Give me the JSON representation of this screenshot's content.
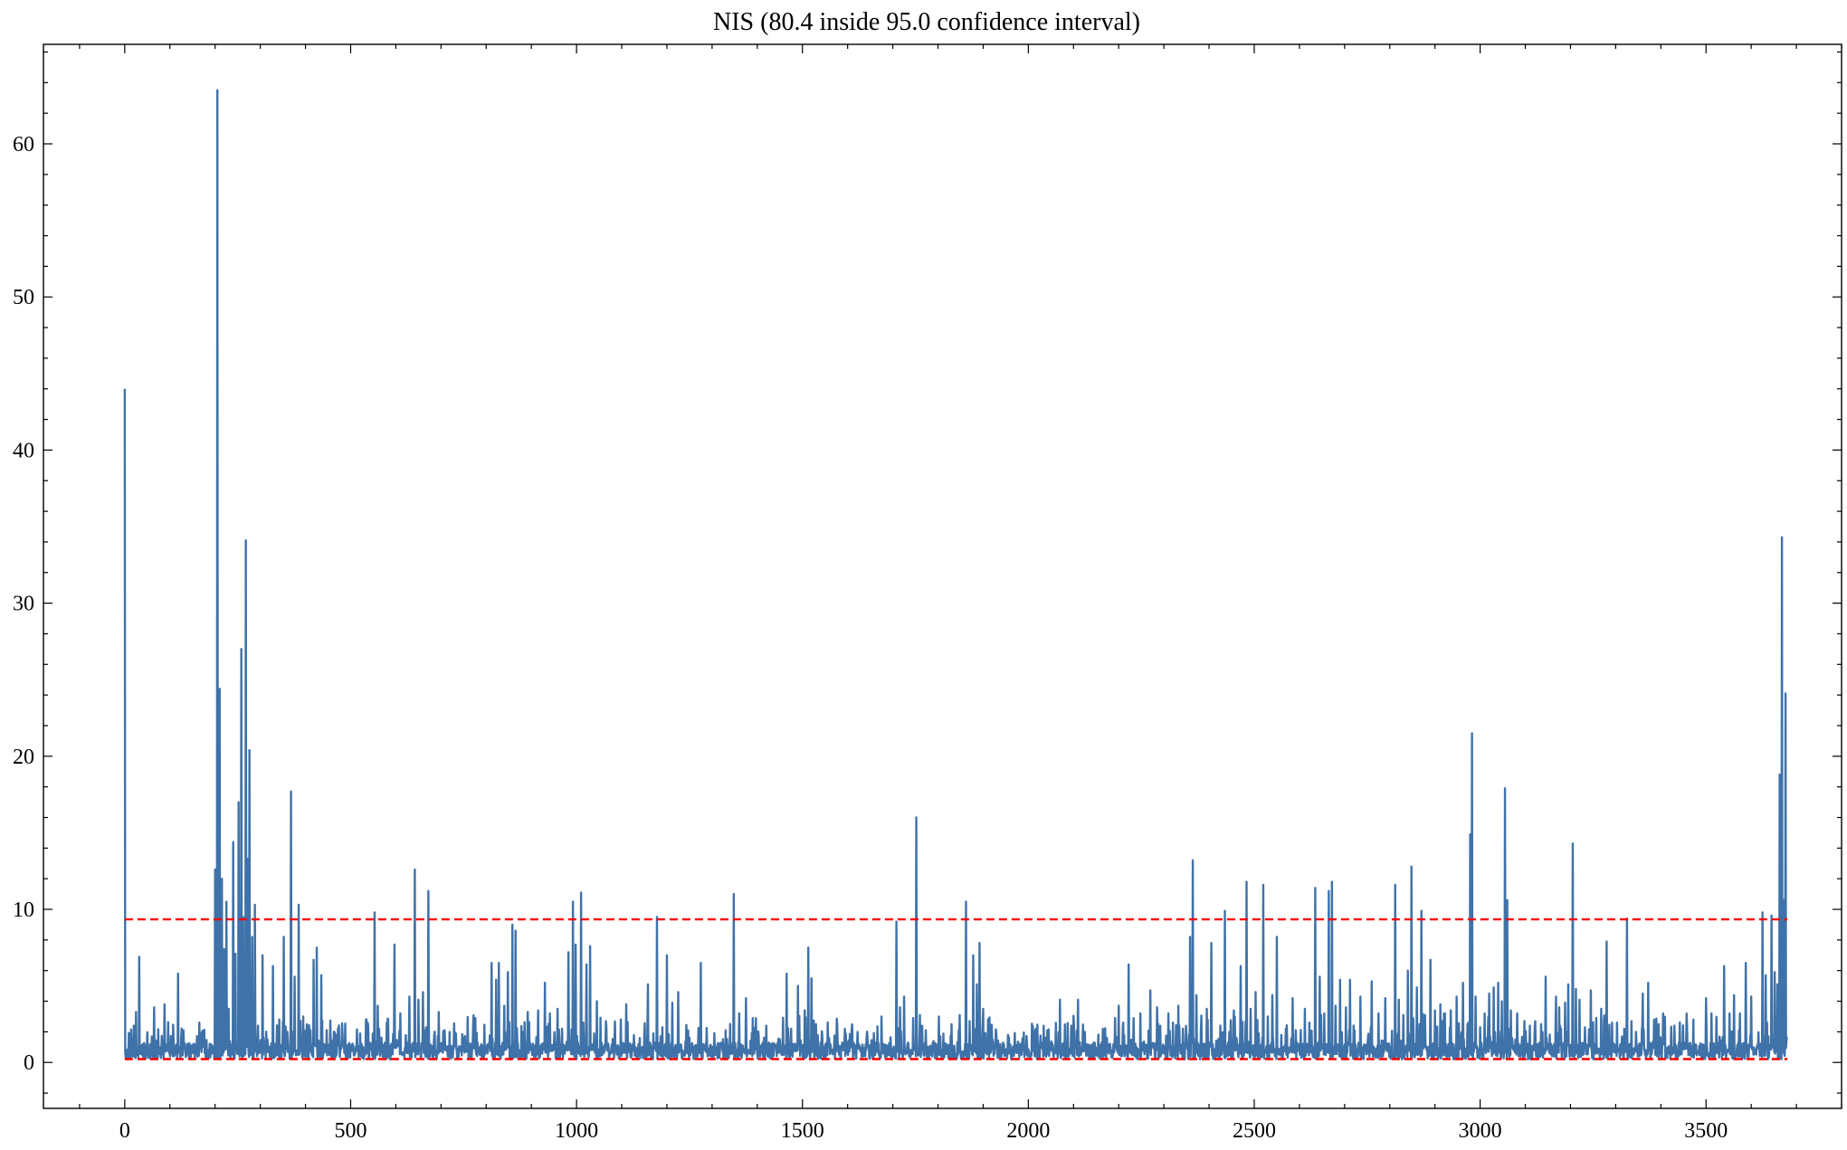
{
  "chart_data": {
    "type": "line",
    "title": "NIS (80.4 inside 95.0 confidence interval)",
    "xlabel": "",
    "ylabel": "",
    "xlim": [
      -180,
      3800
    ],
    "ylim": [
      -3,
      66.5
    ],
    "grid": false,
    "x_ticks": [
      0,
      500,
      1000,
      1500,
      2000,
      2500,
      3000,
      3500
    ],
    "x_tick_labels": [
      "0",
      "500",
      "1000",
      "1500",
      "2000",
      "2500",
      "3000",
      "3500"
    ],
    "x_minor_step": 100,
    "y_ticks": [
      0,
      10,
      20,
      30,
      40,
      50,
      60
    ],
    "y_tick_labels": [
      "0",
      "10",
      "20",
      "30",
      "40",
      "50",
      "60"
    ],
    "y_minor_step": 2,
    "series": [
      {
        "color": "#3f72a8",
        "style": "solid",
        "x_range": [
          0,
          3680
        ],
        "peaks": [
          [
            0,
            44
          ],
          [
            3,
            0.5
          ],
          [
            8,
            0.3
          ],
          [
            20,
            2.4
          ],
          [
            25,
            3.3
          ],
          [
            32,
            6.9
          ],
          [
            40,
            1.2
          ],
          [
            60,
            1.7
          ],
          [
            65,
            3.6
          ],
          [
            75,
            0.9
          ],
          [
            88,
            3.8
          ],
          [
            100,
            0.4
          ],
          [
            118,
            5.8
          ],
          [
            130,
            2.1
          ],
          [
            150,
            0.6
          ],
          [
            165,
            2.6
          ],
          [
            180,
            0.4
          ],
          [
            200,
            12.6
          ],
          [
            205,
            63.5
          ],
          [
            210,
            24.4
          ],
          [
            215,
            12.0
          ],
          [
            220,
            7.4
          ],
          [
            225,
            10.5
          ],
          [
            230,
            3.5
          ],
          [
            240,
            14.4
          ],
          [
            245,
            7.1
          ],
          [
            252,
            17.0
          ],
          [
            258,
            27.0
          ],
          [
            262,
            9.5
          ],
          [
            268,
            34.1
          ],
          [
            272,
            13.3
          ],
          [
            276,
            20.4
          ],
          [
            282,
            8.2
          ],
          [
            288,
            10.3
          ],
          [
            295,
            2.4
          ],
          [
            305,
            7.0
          ],
          [
            315,
            1.5
          ],
          [
            328,
            6.3
          ],
          [
            342,
            2.8
          ],
          [
            352,
            8.2
          ],
          [
            360,
            2.0
          ],
          [
            368,
            17.7
          ],
          [
            376,
            5.6
          ],
          [
            385,
            10.3
          ],
          [
            395,
            3.0
          ],
          [
            405,
            1.5
          ],
          [
            418,
            6.7
          ],
          [
            425,
            7.5
          ],
          [
            435,
            5.7
          ],
          [
            445,
            1.0
          ],
          [
            470,
            1.3
          ],
          [
            500,
            1.1
          ],
          [
            520,
            0.5
          ],
          [
            535,
            2.8
          ],
          [
            553,
            9.8
          ],
          [
            560,
            3.7
          ],
          [
            580,
            2.6
          ],
          [
            597,
            7.7
          ],
          [
            610,
            3.2
          ],
          [
            630,
            4.3
          ],
          [
            642,
            12.6
          ],
          [
            650,
            4.1
          ],
          [
            660,
            4.6
          ],
          [
            672,
            11.2
          ],
          [
            685,
            1.8
          ],
          [
            695,
            3.3
          ],
          [
            720,
            0.6
          ],
          [
            745,
            1.0
          ],
          [
            775,
            1.5
          ],
          [
            790,
            0.4
          ],
          [
            812,
            6.5
          ],
          [
            822,
            5.4
          ],
          [
            828,
            6.5
          ],
          [
            840,
            3.7
          ],
          [
            848,
            5.9
          ],
          [
            858,
            9.0
          ],
          [
            865,
            8.6
          ],
          [
            880,
            2.0
          ],
          [
            892,
            3.3
          ],
          [
            905,
            1.0
          ],
          [
            915,
            3.4
          ],
          [
            930,
            5.2
          ],
          [
            940,
            1.1
          ],
          [
            958,
            3.5
          ],
          [
            968,
            2.2
          ],
          [
            982,
            7.2
          ],
          [
            992,
            10.5
          ],
          [
            998,
            7.7
          ],
          [
            1010,
            11.1
          ],
          [
            1022,
            6.4
          ],
          [
            1030,
            7.6
          ],
          [
            1045,
            4.0
          ],
          [
            1060,
            1.0
          ],
          [
            1075,
            0.6
          ],
          [
            1093,
            0.5
          ],
          [
            1110,
            3.8
          ],
          [
            1122,
            0.4
          ],
          [
            1140,
            1.6
          ],
          [
            1158,
            5.1
          ],
          [
            1170,
            1.9
          ],
          [
            1178,
            9.5
          ],
          [
            1190,
            2.3
          ],
          [
            1200,
            7.0
          ],
          [
            1212,
            3.9
          ],
          [
            1225,
            4.6
          ],
          [
            1240,
            0.5
          ],
          [
            1265,
            0.7
          ],
          [
            1275,
            6.5
          ],
          [
            1290,
            0.4
          ],
          [
            1310,
            0.9
          ],
          [
            1330,
            2.1
          ],
          [
            1348,
            11.0
          ],
          [
            1360,
            3.2
          ],
          [
            1375,
            4.2
          ],
          [
            1390,
            2.9
          ],
          [
            1405,
            0.6
          ],
          [
            1420,
            2.4
          ],
          [
            1435,
            0.5
          ],
          [
            1450,
            1.5
          ],
          [
            1465,
            5.8
          ],
          [
            1475,
            2.2
          ],
          [
            1490,
            5.0
          ],
          [
            1505,
            3.4
          ],
          [
            1513,
            7.5
          ],
          [
            1520,
            5.5
          ],
          [
            1530,
            2.5
          ],
          [
            1545,
            0.5
          ],
          [
            1570,
            0.9
          ],
          [
            1600,
            1.3
          ],
          [
            1635,
            0.4
          ],
          [
            1660,
            0.8
          ],
          [
            1675,
            3.0
          ],
          [
            1690,
            0.5
          ],
          [
            1708,
            9.2
          ],
          [
            1716,
            3.6
          ],
          [
            1725,
            4.3
          ],
          [
            1745,
            2.9
          ],
          [
            1752,
            16.0
          ],
          [
            1760,
            3.1
          ],
          [
            1775,
            0.6
          ],
          [
            1790,
            1.4
          ],
          [
            1802,
            3.0
          ],
          [
            1815,
            0.7
          ],
          [
            1830,
            2.5
          ],
          [
            1848,
            3.1
          ],
          [
            1862,
            10.5
          ],
          [
            1870,
            2.7
          ],
          [
            1878,
            7.0
          ],
          [
            1886,
            5.1
          ],
          [
            1892,
            7.8
          ],
          [
            1900,
            3.5
          ],
          [
            1915,
            0.6
          ],
          [
            1935,
            1.0
          ],
          [
            1955,
            1.8
          ],
          [
            1985,
            0.5
          ],
          [
            2005,
            0.4
          ],
          [
            2030,
            1.1
          ],
          [
            2055,
            0.5
          ],
          [
            2070,
            4.1
          ],
          [
            2080,
            1.0
          ],
          [
            2095,
            2.4
          ],
          [
            2110,
            4.1
          ],
          [
            2125,
            2.0
          ],
          [
            2145,
            1.3
          ],
          [
            2165,
            2.2
          ],
          [
            2180,
            0.7
          ],
          [
            2192,
            2.9
          ],
          [
            2200,
            3.7
          ],
          [
            2210,
            2.6
          ],
          [
            2222,
            6.4
          ],
          [
            2233,
            2.9
          ],
          [
            2248,
            3.2
          ],
          [
            2260,
            0.8
          ],
          [
            2270,
            4.7
          ],
          [
            2285,
            3.6
          ],
          [
            2295,
            0.9
          ],
          [
            2310,
            3.2
          ],
          [
            2320,
            2.6
          ],
          [
            2332,
            3.7
          ],
          [
            2342,
            2.2
          ],
          [
            2352,
            0.9
          ],
          [
            2358,
            8.2
          ],
          [
            2364,
            13.2
          ],
          [
            2372,
            4.4
          ],
          [
            2385,
            1.2
          ],
          [
            2395,
            3.5
          ],
          [
            2405,
            7.8
          ],
          [
            2415,
            0.9
          ],
          [
            2425,
            2.4
          ],
          [
            2435,
            9.9
          ],
          [
            2445,
            2.0
          ],
          [
            2455,
            3.4
          ],
          [
            2470,
            6.3
          ],
          [
            2483,
            11.8
          ],
          [
            2492,
            3.5
          ],
          [
            2503,
            4.6
          ],
          [
            2510,
            1.9
          ],
          [
            2520,
            11.6
          ],
          [
            2530,
            3.0
          ],
          [
            2540,
            4.4
          ],
          [
            2550,
            8.2
          ],
          [
            2560,
            1.8
          ],
          [
            2570,
            2.2
          ],
          [
            2585,
            4.2
          ],
          [
            2600,
            1.2
          ],
          [
            2612,
            3.5
          ],
          [
            2622,
            2.6
          ],
          [
            2635,
            11.4
          ],
          [
            2645,
            5.6
          ],
          [
            2655,
            3.2
          ],
          [
            2665,
            11.2
          ],
          [
            2672,
            11.8
          ],
          [
            2680,
            3.7
          ],
          [
            2690,
            5.4
          ],
          [
            2703,
            3.6
          ],
          [
            2712,
            5.4
          ],
          [
            2722,
            2.1
          ],
          [
            2735,
            4.3
          ],
          [
            2745,
            0.9
          ],
          [
            2760,
            5.3
          ],
          [
            2775,
            3.2
          ],
          [
            2790,
            4.2
          ],
          [
            2800,
            1.0
          ],
          [
            2812,
            11.6
          ],
          [
            2820,
            4.1
          ],
          [
            2830,
            3.1
          ],
          [
            2840,
            6.0
          ],
          [
            2848,
            12.8
          ],
          [
            2860,
            4.9
          ],
          [
            2870,
            9.9
          ],
          [
            2878,
            3.1
          ],
          [
            2890,
            6.7
          ],
          [
            2900,
            3.4
          ],
          [
            2912,
            3.8
          ],
          [
            2922,
            3.2
          ],
          [
            2935,
            3.4
          ],
          [
            2948,
            4.3
          ],
          [
            2962,
            5.2
          ],
          [
            2972,
            2.5
          ],
          [
            2978,
            14.9
          ],
          [
            2982,
            21.5
          ],
          [
            2990,
            4.3
          ],
          [
            3000,
            2.3
          ],
          [
            3010,
            3.2
          ],
          [
            3020,
            4.5
          ],
          [
            3030,
            4.9
          ],
          [
            3040,
            5.2
          ],
          [
            3048,
            4.0
          ],
          [
            3055,
            17.9
          ],
          [
            3060,
            10.6
          ],
          [
            3068,
            3.4
          ],
          [
            3082,
            3.2
          ],
          [
            3098,
            2.7
          ],
          [
            3110,
            2.4
          ],
          [
            3122,
            2.7
          ],
          [
            3135,
            2.5
          ],
          [
            3145,
            5.6
          ],
          [
            3155,
            0.8
          ],
          [
            3168,
            4.3
          ],
          [
            3175,
            3.6
          ],
          [
            3188,
            3.9
          ],
          [
            3195,
            5.1
          ],
          [
            3205,
            14.3
          ],
          [
            3212,
            4.8
          ],
          [
            3220,
            4.1
          ],
          [
            3232,
            2.3
          ],
          [
            3245,
            4.7
          ],
          [
            3255,
            1.2
          ],
          [
            3268,
            3.5
          ],
          [
            3280,
            7.9
          ],
          [
            3292,
            2.6
          ],
          [
            3303,
            2.6
          ],
          [
            3312,
            1.1
          ],
          [
            3325,
            9.4
          ],
          [
            3335,
            2.7
          ],
          [
            3348,
            1.1
          ],
          [
            3360,
            4.5
          ],
          [
            3372,
            5.2
          ],
          [
            3385,
            2.8
          ],
          [
            3395,
            2.5
          ],
          [
            3405,
            3.2
          ],
          [
            3418,
            1.0
          ],
          [
            3430,
            2.4
          ],
          [
            3440,
            1.3
          ],
          [
            3455,
            0.9
          ],
          [
            3472,
            2.8
          ],
          [
            3482,
            0.6
          ],
          [
            3500,
            4.2
          ],
          [
            3512,
            3.2
          ],
          [
            3528,
            1.0
          ],
          [
            3540,
            6.3
          ],
          [
            3552,
            3.2
          ],
          [
            3562,
            4.4
          ],
          [
            3575,
            3.2
          ],
          [
            3588,
            6.5
          ],
          [
            3600,
            4.3
          ],
          [
            3612,
            0.9
          ],
          [
            3625,
            9.8
          ],
          [
            3632,
            5.7
          ],
          [
            3638,
            1.7
          ],
          [
            3645,
            9.6
          ],
          [
            3652,
            5.9
          ],
          [
            3658,
            5.1
          ],
          [
            3663,
            18.8
          ],
          [
            3668,
            34.3
          ],
          [
            3672,
            10.6
          ],
          [
            3676,
            24.1
          ],
          [
            3680,
            1.6
          ]
        ]
      },
      {
        "color": "#ff0000",
        "style": "dashed",
        "x": [
          0,
          3680
        ],
        "y": [
          9.35,
          9.35
        ]
      },
      {
        "color": "#ff0000",
        "style": "dashed",
        "x": [
          0,
          3680
        ],
        "y": [
          0.22,
          0.22
        ]
      }
    ]
  }
}
